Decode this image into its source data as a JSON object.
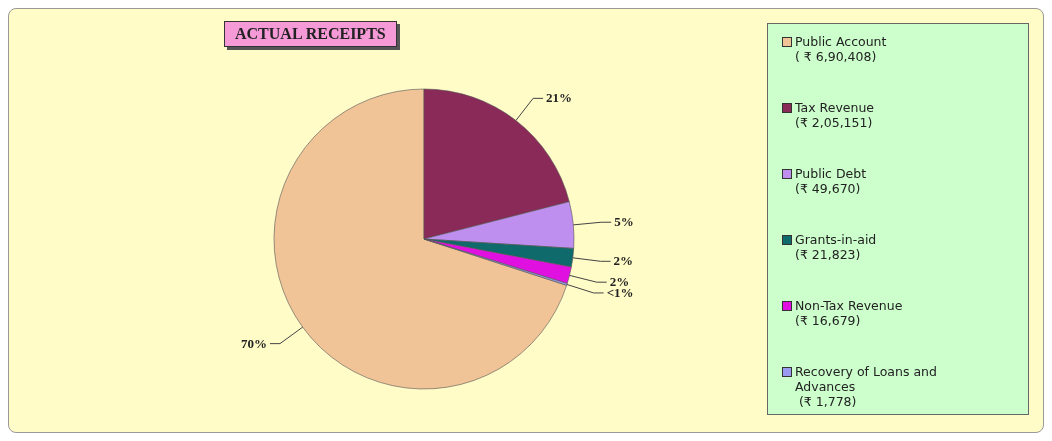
{
  "chart_data": {
    "type": "pie",
    "title": "ACTUAL RECEIPTS",
    "categories": [
      "Public Account\n( ₹ 6,90,408)",
      "Tax Revenue\n(₹ 2,05,151)",
      "Public Debt\n(₹ 49,670)",
      "Grants-in-aid\n(₹ 21,823)",
      "Non-Tax Revenue\n(₹ 16,679)",
      "Recovery of Loans and\nAdvances\n (₹ 1,778)"
    ],
    "values": [
      70,
      21,
      5,
      2,
      1.8,
      0.2
    ],
    "value_labels": [
      "70%",
      "21%",
      "5%",
      "2%",
      "2%",
      "<1%"
    ],
    "colors": [
      "#f0c496",
      "#8a2a58",
      "#bf8ff0",
      "#0f6b6b",
      "#e010e0",
      "#9a9af0"
    ],
    "legend": "right"
  }
}
